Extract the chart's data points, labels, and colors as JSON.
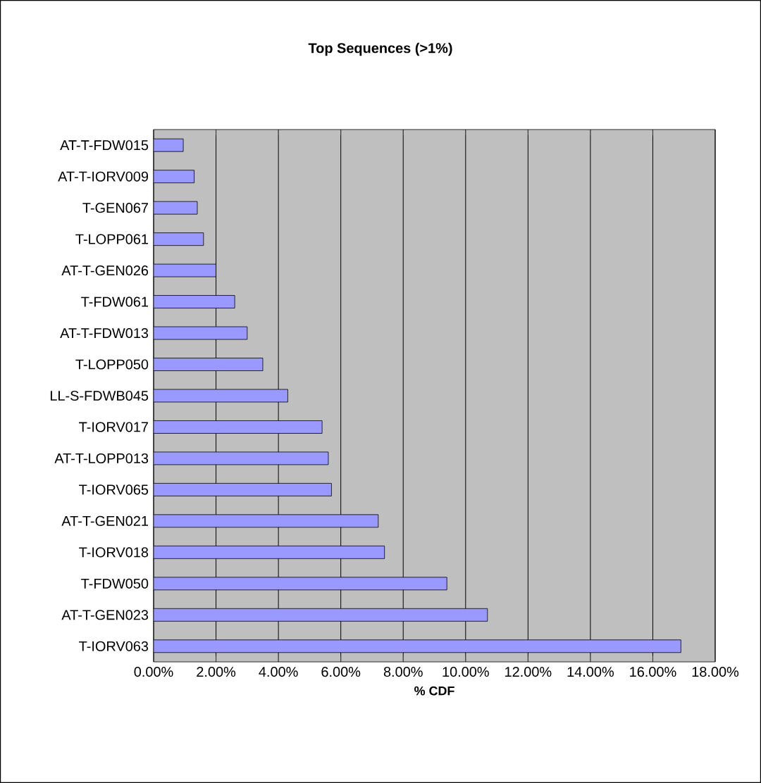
{
  "chart_data": {
    "type": "bar",
    "orientation": "horizontal",
    "title": "**Top Sequences (>1%)**",
    "xlabel": "**% CDF**",
    "categories": [
      "AT-T-FDW015",
      "AT-T-IORV009",
      "T-GEN067",
      "T-LOPP061",
      "AT-T-GEN026",
      "T-FDW061",
      "AT-T-FDW013",
      "T-LOPP050",
      "LL-S-FDWB045",
      "T-IORV017",
      "AT-T-LOPP013",
      "T-IORV065",
      "AT-T-GEN021",
      "T-IORV018",
      "T-FDW050",
      "AT-T-GEN023",
      "T-IORV063"
    ],
    "values": [
      0.95,
      1.3,
      1.4,
      1.6,
      2.0,
      2.6,
      3.0,
      3.5,
      4.3,
      5.4,
      5.6,
      5.7,
      7.2,
      7.4,
      9.4,
      10.7,
      16.9
    ],
    "color": "#9999ff",
    "xlim": [
      0,
      18
    ],
    "xticks": [
      {
        "value": 0,
        "label": "0.00%"
      },
      {
        "value": 2,
        "label": "2.00%"
      },
      {
        "value": 4,
        "label": "4.00%"
      },
      {
        "value": 6,
        "label": "6.00%"
      },
      {
        "value": 8,
        "label": "8.00%"
      },
      {
        "value": 10,
        "label": "10.00%"
      },
      {
        "value": 12,
        "label": "12.00%"
      },
      {
        "value": 14,
        "label": "14.00%"
      },
      {
        "value": 16,
        "label": "16.00%"
      },
      {
        "value": 18,
        "label": "18.00%"
      }
    ],
    "grid": "x"
  }
}
